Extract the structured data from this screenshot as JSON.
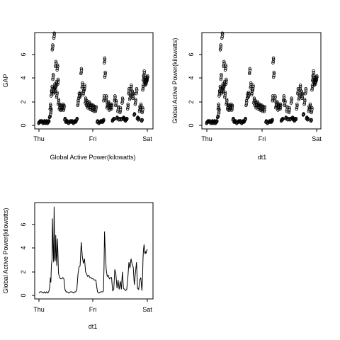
{
  "chart_data": [
    {
      "type": "scatter",
      "xlabel": "Global Active Power(kilowatts)",
      "ylabel": "GAP",
      "x_ticks": [
        "Thu",
        "Fri",
        "Sat"
      ],
      "y_ticks": [
        0,
        2,
        4,
        6
      ],
      "xlim": [
        0,
        2
      ],
      "ylim": [
        0,
        7.6
      ],
      "marker": "open-circle",
      "grid": false,
      "legend": "none"
    },
    {
      "type": "scatter",
      "xlabel": "dt1",
      "ylabel": "Global Active Power(kilowatts)",
      "x_ticks": [
        "Thu",
        "Fri",
        "Sat"
      ],
      "y_ticks": [
        0,
        2,
        4,
        6
      ],
      "xlim": [
        0,
        2
      ],
      "ylim": [
        0,
        7.6
      ],
      "marker": "open-circle",
      "grid": false,
      "legend": "none"
    },
    {
      "type": "line",
      "xlabel": "dt1",
      "ylabel": "Global Active Power(kilowatts)",
      "x_ticks": [
        "Thu",
        "Fri",
        "Sat"
      ],
      "y_ticks": [
        0,
        2,
        4,
        6
      ],
      "xlim": [
        0,
        2
      ],
      "ylim": [
        0,
        7.6
      ],
      "grid": false,
      "legend": "none"
    }
  ],
  "series": {
    "name": "",
    "x": [
      0.0,
      0.02,
      0.05,
      0.08,
      0.1,
      0.12,
      0.14,
      0.16,
      0.18,
      0.2,
      0.21,
      0.22,
      0.23,
      0.24,
      0.25,
      0.26,
      0.27,
      0.28,
      0.29,
      0.3,
      0.31,
      0.32,
      0.33,
      0.34,
      0.35,
      0.36,
      0.38,
      0.4,
      0.42,
      0.44,
      0.46,
      0.48,
      0.5,
      0.52,
      0.55,
      0.58,
      0.61,
      0.64,
      0.66,
      0.68,
      0.7,
      0.72,
      0.74,
      0.76,
      0.78,
      0.8,
      0.82,
      0.84,
      0.86,
      0.88,
      0.9,
      0.92,
      0.94,
      0.96,
      0.98,
      1.0,
      1.02,
      1.05,
      1.08,
      1.11,
      1.14,
      1.16,
      1.18,
      1.19,
      1.2,
      1.21,
      1.22,
      1.24,
      1.26,
      1.28,
      1.3,
      1.32,
      1.34,
      1.36,
      1.38,
      1.4,
      1.42,
      1.44,
      1.46,
      1.48,
      1.5,
      1.52,
      1.54,
      1.56,
      1.58,
      1.6,
      1.62,
      1.64,
      1.66,
      1.68,
      1.7,
      1.72,
      1.74,
      1.76,
      1.78,
      1.8,
      1.82,
      1.84,
      1.86,
      1.88,
      1.9,
      1.91,
      1.92,
      1.93,
      1.94,
      1.95,
      1.96,
      1.97,
      1.98,
      1.99,
      2.0
    ],
    "y": [
      0.2,
      0.3,
      0.3,
      0.2,
      0.3,
      0.2,
      0.3,
      0.2,
      0.3,
      0.7,
      1.5,
      1.1,
      2.6,
      3.0,
      6.5,
      4.0,
      2.8,
      7.5,
      3.2,
      2.9,
      5.1,
      3.4,
      2.5,
      4.8,
      3.6,
      1.9,
      1.5,
      1.4,
      1.4,
      1.5,
      1.4,
      0.5,
      0.3,
      0.3,
      0.2,
      0.3,
      0.3,
      0.2,
      0.3,
      0.3,
      0.5,
      1.8,
      2.4,
      2.5,
      4.5,
      3.3,
      2.7,
      3.1,
      2.0,
      1.8,
      1.6,
      1.7,
      1.5,
      1.5,
      1.4,
      1.4,
      1.3,
      1.3,
      0.3,
      0.2,
      0.3,
      0.3,
      0.3,
      0.4,
      2.2,
      5.4,
      4.2,
      2.2,
      1.6,
      1.7,
      1.4,
      1.5,
      1.5,
      0.4,
      0.5,
      2.2,
      1.8,
      0.6,
      1.3,
      0.5,
      1.2,
      0.5,
      2.0,
      0.6,
      0.5,
      0.4,
      0.5,
      1.5,
      2.8,
      2.3,
      3.1,
      2.6,
      2.4,
      0.9,
      1.9,
      2.8,
      0.6,
      0.5,
      1.3,
      1.5,
      0.4,
      1.2,
      3.1,
      3.9,
      4.3,
      3.7,
      3.5,
      3.7,
      3.6,
      3.8,
      3.9
    ]
  }
}
